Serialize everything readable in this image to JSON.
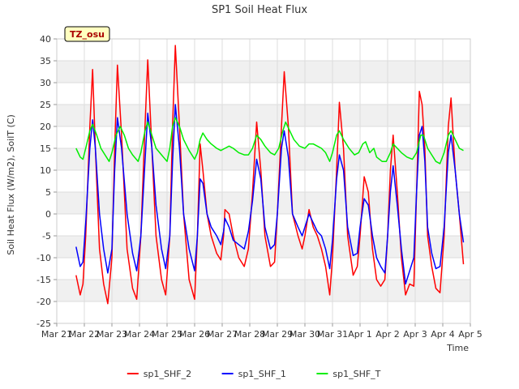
{
  "chart_data": {
    "type": "line",
    "title": "SP1 Soil Heat Flux",
    "xlabel": "Time",
    "ylabel": "Soil Heat Flux (W/m2), SoilT (C)",
    "badge": "TZ_osu",
    "ylim": [
      -25,
      40
    ],
    "yticks": [
      -25,
      -20,
      -15,
      -10,
      -5,
      0,
      5,
      10,
      15,
      20,
      25,
      30,
      35,
      40
    ],
    "xlim": [
      0,
      15
    ],
    "xticks": [
      {
        "v": 0,
        "label": "Mar 21"
      },
      {
        "v": 1,
        "label": "Mar 22"
      },
      {
        "v": 2,
        "label": "Mar 23"
      },
      {
        "v": 3,
        "label": "Mar 24"
      },
      {
        "v": 4,
        "label": "Mar 25"
      },
      {
        "v": 5,
        "label": "Mar 26"
      },
      {
        "v": 6,
        "label": "Mar 27"
      },
      {
        "v": 7,
        "label": "Mar 28"
      },
      {
        "v": 8,
        "label": "Mar 29"
      },
      {
        "v": 9,
        "label": "Mar 30"
      },
      {
        "v": 10,
        "label": "Mar 31"
      },
      {
        "v": 11,
        "label": "Apr 1"
      },
      {
        "v": 12,
        "label": "Apr 2"
      },
      {
        "v": 13,
        "label": "Apr 3"
      },
      {
        "v": 14,
        "label": "Apr 4"
      },
      {
        "v": 15,
        "label": "Apr 5"
      }
    ],
    "grid": true,
    "legend_position": "bottom",
    "series": [
      {
        "name": "sp1_SHF_2",
        "color": "#ff0000",
        "points": [
          [
            0.7,
            -14
          ],
          [
            0.85,
            -18.5
          ],
          [
            0.95,
            -16
          ],
          [
            1.05,
            -5
          ],
          [
            1.2,
            20
          ],
          [
            1.3,
            33
          ],
          [
            1.4,
            15
          ],
          [
            1.55,
            -8
          ],
          [
            1.7,
            -16
          ],
          [
            1.85,
            -20.5
          ],
          [
            2.0,
            -10
          ],
          [
            2.1,
            15
          ],
          [
            2.2,
            34
          ],
          [
            2.35,
            18
          ],
          [
            2.55,
            -8
          ],
          [
            2.75,
            -17
          ],
          [
            2.9,
            -19.5
          ],
          [
            3.05,
            -5
          ],
          [
            3.2,
            20
          ],
          [
            3.3,
            35.2
          ],
          [
            3.45,
            15
          ],
          [
            3.6,
            -5
          ],
          [
            3.8,
            -15
          ],
          [
            3.95,
            -18.5
          ],
          [
            4.1,
            -5
          ],
          [
            4.2,
            20
          ],
          [
            4.3,
            38.5
          ],
          [
            4.45,
            20
          ],
          [
            4.6,
            0
          ],
          [
            4.8,
            -15
          ],
          [
            5.0,
            -19.5
          ],
          [
            5.1,
            -5
          ],
          [
            5.2,
            16
          ],
          [
            5.3,
            10
          ],
          [
            5.45,
            0
          ],
          [
            5.6,
            -5
          ],
          [
            5.8,
            -9
          ],
          [
            5.95,
            -10.5
          ],
          [
            6.05,
            -5
          ],
          [
            6.1,
            1
          ],
          [
            6.25,
            0
          ],
          [
            6.4,
            -5
          ],
          [
            6.6,
            -10
          ],
          [
            6.8,
            -12
          ],
          [
            6.95,
            -8
          ],
          [
            7.1,
            5
          ],
          [
            7.25,
            21
          ],
          [
            7.4,
            10
          ],
          [
            7.55,
            -5
          ],
          [
            7.75,
            -12
          ],
          [
            7.9,
            -11
          ],
          [
            8.0,
            0
          ],
          [
            8.15,
            20
          ],
          [
            8.25,
            32.5
          ],
          [
            8.4,
            20
          ],
          [
            8.55,
            0
          ],
          [
            8.75,
            -5
          ],
          [
            8.9,
            -8
          ],
          [
            9.0,
            -5
          ],
          [
            9.15,
            1
          ],
          [
            9.3,
            -3
          ],
          [
            9.45,
            -5
          ],
          [
            9.6,
            -8
          ],
          [
            9.75,
            -12
          ],
          [
            9.9,
            -18.5
          ],
          [
            10.0,
            -10
          ],
          [
            10.15,
            10
          ],
          [
            10.25,
            25.5
          ],
          [
            10.4,
            15
          ],
          [
            10.55,
            -5
          ],
          [
            10.75,
            -14
          ],
          [
            10.9,
            -12
          ],
          [
            11.0,
            -5
          ],
          [
            11.15,
            8.5
          ],
          [
            11.3,
            5
          ],
          [
            11.45,
            -8
          ],
          [
            11.6,
            -15
          ],
          [
            11.75,
            -16.5
          ],
          [
            11.9,
            -15
          ],
          [
            12.0,
            -5
          ],
          [
            12.1,
            10
          ],
          [
            12.2,
            18
          ],
          [
            12.35,
            5
          ],
          [
            12.5,
            -10
          ],
          [
            12.65,
            -18.5
          ],
          [
            12.8,
            -16
          ],
          [
            12.95,
            -16.5
          ],
          [
            13.05,
            5
          ],
          [
            13.15,
            28
          ],
          [
            13.25,
            25
          ],
          [
            13.35,
            15
          ],
          [
            13.45,
            -5
          ],
          [
            13.6,
            -12
          ],
          [
            13.75,
            -17
          ],
          [
            13.9,
            -18
          ],
          [
            14.05,
            -5
          ],
          [
            14.2,
            20
          ],
          [
            14.3,
            26.5
          ],
          [
            14.45,
            10
          ],
          [
            14.6,
            0
          ],
          [
            14.75,
            -11.5
          ]
        ]
      },
      {
        "name": "sp1_SHF_1",
        "color": "#0000ff",
        "points": [
          [
            0.7,
            -7.5
          ],
          [
            0.85,
            -12
          ],
          [
            0.95,
            -11
          ],
          [
            1.05,
            -2
          ],
          [
            1.2,
            15
          ],
          [
            1.3,
            21.5
          ],
          [
            1.4,
            15
          ],
          [
            1.55,
            0
          ],
          [
            1.7,
            -8
          ],
          [
            1.85,
            -13.5
          ],
          [
            2.0,
            -8
          ],
          [
            2.1,
            10
          ],
          [
            2.2,
            22
          ],
          [
            2.35,
            15
          ],
          [
            2.55,
            0
          ],
          [
            2.75,
            -9
          ],
          [
            2.9,
            -13
          ],
          [
            3.05,
            -5
          ],
          [
            3.2,
            12
          ],
          [
            3.3,
            23
          ],
          [
            3.45,
            15
          ],
          [
            3.6,
            2
          ],
          [
            3.8,
            -8
          ],
          [
            3.95,
            -12.5
          ],
          [
            4.1,
            -5
          ],
          [
            4.2,
            12
          ],
          [
            4.3,
            25
          ],
          [
            4.45,
            15
          ],
          [
            4.6,
            0
          ],
          [
            4.8,
            -8
          ],
          [
            5.0,
            -13
          ],
          [
            5.1,
            -5
          ],
          [
            5.2,
            8
          ],
          [
            5.3,
            7
          ],
          [
            5.45,
            0
          ],
          [
            5.6,
            -3
          ],
          [
            5.8,
            -5
          ],
          [
            5.95,
            -7
          ],
          [
            6.05,
            -4
          ],
          [
            6.1,
            -1
          ],
          [
            6.25,
            -3
          ],
          [
            6.4,
            -6
          ],
          [
            6.6,
            -7
          ],
          [
            6.8,
            -8
          ],
          [
            6.95,
            -4
          ],
          [
            7.1,
            3
          ],
          [
            7.25,
            12.5
          ],
          [
            7.4,
            8
          ],
          [
            7.55,
            -3
          ],
          [
            7.75,
            -8
          ],
          [
            7.9,
            -7
          ],
          [
            8.0,
            0
          ],
          [
            8.15,
            15
          ],
          [
            8.25,
            19
          ],
          [
            8.4,
            13
          ],
          [
            8.55,
            0
          ],
          [
            8.75,
            -3
          ],
          [
            8.9,
            -5
          ],
          [
            9.0,
            -3
          ],
          [
            9.15,
            0
          ],
          [
            9.3,
            -2
          ],
          [
            9.45,
            -4
          ],
          [
            9.6,
            -5
          ],
          [
            9.75,
            -8
          ],
          [
            9.9,
            -12.5
          ],
          [
            10.0,
            -6
          ],
          [
            10.15,
            8
          ],
          [
            10.25,
            13.5
          ],
          [
            10.4,
            10
          ],
          [
            10.55,
            -3
          ],
          [
            10.75,
            -9.5
          ],
          [
            10.9,
            -9
          ],
          [
            11.0,
            -3
          ],
          [
            11.15,
            3.5
          ],
          [
            11.3,
            2
          ],
          [
            11.45,
            -5
          ],
          [
            11.6,
            -10
          ],
          [
            11.75,
            -12
          ],
          [
            11.9,
            -13.5
          ],
          [
            12.0,
            -5
          ],
          [
            12.1,
            5
          ],
          [
            12.2,
            11
          ],
          [
            12.35,
            2
          ],
          [
            12.5,
            -8
          ],
          [
            12.65,
            -16
          ],
          [
            12.8,
            -13
          ],
          [
            12.95,
            -10
          ],
          [
            13.05,
            5
          ],
          [
            13.15,
            18
          ],
          [
            13.25,
            20
          ],
          [
            13.35,
            12
          ],
          [
            13.45,
            -3
          ],
          [
            13.6,
            -9
          ],
          [
            13.75,
            -12.5
          ],
          [
            13.9,
            -12
          ],
          [
            14.05,
            -3
          ],
          [
            14.2,
            14
          ],
          [
            14.3,
            18
          ],
          [
            14.45,
            10
          ],
          [
            14.6,
            0
          ],
          [
            14.75,
            -6.5
          ]
        ]
      },
      {
        "name": "sp1_SHF_T",
        "color": "#00ee00",
        "points": [
          [
            0.7,
            15
          ],
          [
            0.85,
            13
          ],
          [
            0.95,
            12.5
          ],
          [
            1.05,
            15
          ],
          [
            1.2,
            19
          ],
          [
            1.3,
            20.5
          ],
          [
            1.45,
            18
          ],
          [
            1.6,
            15
          ],
          [
            1.75,
            13.5
          ],
          [
            1.9,
            12
          ],
          [
            2.0,
            14
          ],
          [
            2.15,
            18
          ],
          [
            2.3,
            20
          ],
          [
            2.45,
            18
          ],
          [
            2.6,
            15
          ],
          [
            2.75,
            13.5
          ],
          [
            2.95,
            12
          ],
          [
            3.05,
            14
          ],
          [
            3.2,
            19
          ],
          [
            3.3,
            21
          ],
          [
            3.45,
            18
          ],
          [
            3.6,
            15
          ],
          [
            3.8,
            13.5
          ],
          [
            4.0,
            12
          ],
          [
            4.1,
            15
          ],
          [
            4.2,
            20
          ],
          [
            4.3,
            22
          ],
          [
            4.45,
            20
          ],
          [
            4.6,
            17
          ],
          [
            4.8,
            14.5
          ],
          [
            5.0,
            12.5
          ],
          [
            5.1,
            14
          ],
          [
            5.2,
            17
          ],
          [
            5.3,
            18.5
          ],
          [
            5.45,
            17
          ],
          [
            5.6,
            16
          ],
          [
            5.8,
            15
          ],
          [
            5.95,
            14.5
          ],
          [
            6.1,
            15
          ],
          [
            6.25,
            15.5
          ],
          [
            6.4,
            15
          ],
          [
            6.6,
            14
          ],
          [
            6.8,
            13.5
          ],
          [
            6.95,
            13.5
          ],
          [
            7.1,
            15
          ],
          [
            7.25,
            18
          ],
          [
            7.4,
            17
          ],
          [
            7.55,
            15.5
          ],
          [
            7.75,
            14
          ],
          [
            7.9,
            13.5
          ],
          [
            8.05,
            15
          ],
          [
            8.2,
            19
          ],
          [
            8.3,
            21
          ],
          [
            8.45,
            19
          ],
          [
            8.6,
            17
          ],
          [
            8.8,
            15.5
          ],
          [
            9.0,
            15
          ],
          [
            9.15,
            16
          ],
          [
            9.3,
            16
          ],
          [
            9.45,
            15.5
          ],
          [
            9.6,
            15
          ],
          [
            9.75,
            14
          ],
          [
            9.9,
            12
          ],
          [
            10.0,
            14
          ],
          [
            10.15,
            18
          ],
          [
            10.25,
            19
          ],
          [
            10.4,
            17
          ],
          [
            10.6,
            15
          ],
          [
            10.8,
            13.5
          ],
          [
            10.95,
            14
          ],
          [
            11.1,
            16
          ],
          [
            11.2,
            16.5
          ],
          [
            11.35,
            14
          ],
          [
            11.5,
            15
          ],
          [
            11.6,
            13
          ],
          [
            11.8,
            12
          ],
          [
            11.95,
            12
          ],
          [
            12.1,
            14
          ],
          [
            12.2,
            16
          ],
          [
            12.35,
            15
          ],
          [
            12.5,
            14
          ],
          [
            12.7,
            13
          ],
          [
            12.9,
            12.5
          ],
          [
            13.05,
            14
          ],
          [
            13.2,
            18
          ],
          [
            13.3,
            18
          ],
          [
            13.45,
            15
          ],
          [
            13.6,
            13.5
          ],
          [
            13.75,
            12
          ],
          [
            13.9,
            11.5
          ],
          [
            14.05,
            14
          ],
          [
            14.2,
            18
          ],
          [
            14.3,
            19
          ],
          [
            14.45,
            17
          ],
          [
            14.6,
            15
          ],
          [
            14.75,
            14.5
          ]
        ]
      }
    ]
  }
}
